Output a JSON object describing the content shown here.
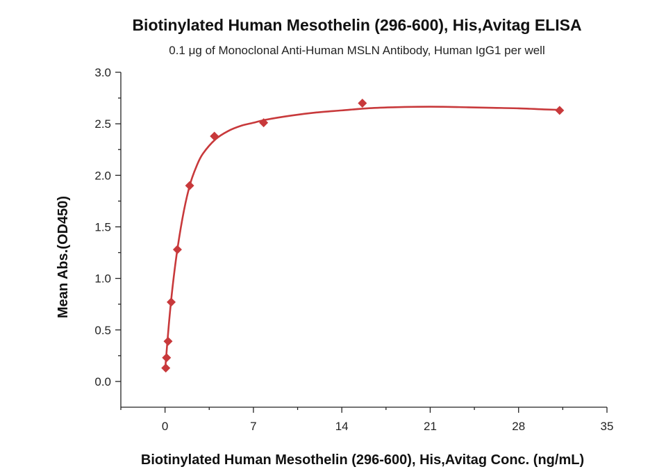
{
  "chart_data": {
    "type": "scatter",
    "title": "Biotinylated Human Mesothelin (296-600), His,Avitag ELISA",
    "subtitle": "0.1 μg of Monoclonal Anti-Human MSLN Antibody, Human IgG1 per well",
    "xlabel": "Biotinylated Human Mesothelin (296-600), His,Avitag Conc. (ng/mL)",
    "ylabel": "Mean Abs.(OD450)",
    "xlim": [
      -3.5,
      35
    ],
    "ylim": [
      -0.25,
      3.0
    ],
    "xticks": [
      0,
      7,
      14,
      21,
      28,
      35
    ],
    "xtick_labels": [
      "0",
      "7",
      "14",
      "21",
      "28",
      "35"
    ],
    "yticks": [
      0.0,
      0.5,
      1.0,
      1.5,
      2.0,
      2.5,
      3.0
    ],
    "ytick_labels": [
      "0.0",
      "0.5",
      "1.0",
      "1.5",
      "2.0",
      "2.5",
      "3.0"
    ],
    "series": [
      {
        "name": "Mean Abs.",
        "marker": "diamond",
        "color": "#c8393b",
        "x": [
          0.06,
          0.12,
          0.24,
          0.49,
          0.98,
          1.95,
          3.91,
          7.81,
          15.63,
          31.25
        ],
        "y": [
          0.13,
          0.23,
          0.39,
          0.77,
          1.28,
          1.9,
          2.38,
          2.51,
          2.7,
          2.63
        ]
      }
    ],
    "fit_curve": {
      "color": "#c8393b",
      "x": [
        0.0,
        0.3,
        0.6,
        1.0,
        1.5,
        2.0,
        2.5,
        3.0,
        4.0,
        5.0,
        6.0,
        7.0,
        8.0,
        10.0,
        12.0,
        14.0,
        16.0,
        18.0,
        20.0,
        22.0,
        24.0,
        26.0,
        28.0,
        30.0,
        31.25
      ],
      "y": [
        0.1,
        0.55,
        0.92,
        1.3,
        1.66,
        1.92,
        2.09,
        2.21,
        2.35,
        2.43,
        2.48,
        2.51,
        2.54,
        2.58,
        2.61,
        2.63,
        2.65,
        2.66,
        2.665,
        2.665,
        2.66,
        2.655,
        2.65,
        2.64,
        2.635
      ]
    }
  }
}
